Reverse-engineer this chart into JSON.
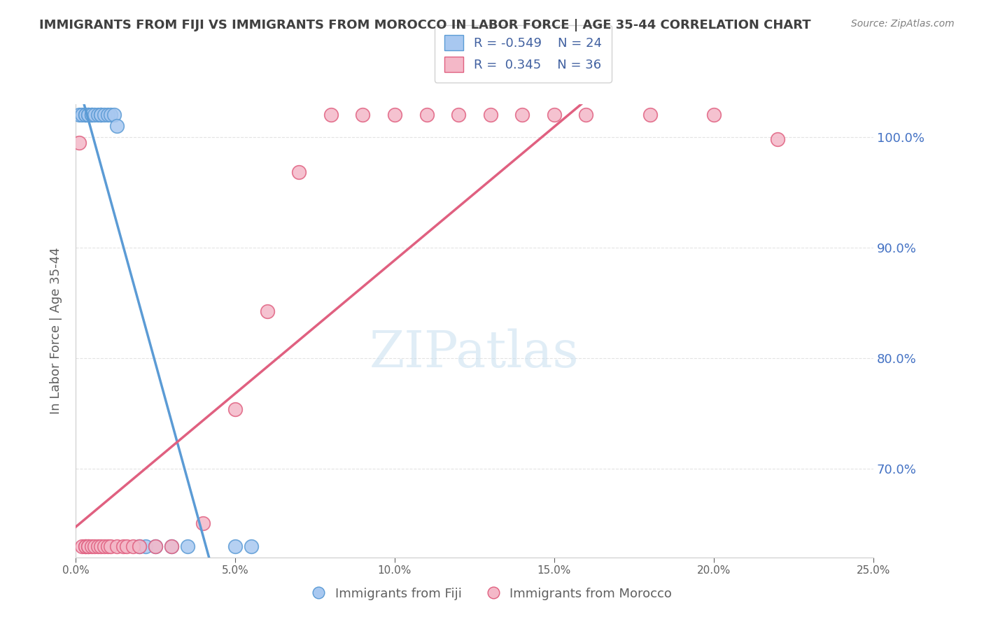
{
  "title": "IMMIGRANTS FROM FIJI VS IMMIGRANTS FROM MOROCCO IN LABOR FORCE | AGE 35-44 CORRELATION CHART",
  "source": "Source: ZipAtlas.com",
  "ylabel": "In Labor Force | Age 35-44",
  "xlim": [
    0.0,
    0.25
  ],
  "ylim": [
    0.62,
    1.03
  ],
  "xticks": [
    0.0,
    0.05,
    0.1,
    0.15,
    0.2,
    0.25
  ],
  "xticklabels": [
    "0.0%",
    "5.0%",
    "10.0%",
    "15.0%",
    "20.0%",
    "25.0%"
  ],
  "yticks": [
    0.7,
    0.8,
    0.9,
    1.0
  ],
  "yticklabels": [
    "70.0%",
    "80.0%",
    "90.0%",
    "100.0%"
  ],
  "fiji_color": "#a8c8f0",
  "fiji_edge": "#5b9bd5",
  "morocco_color": "#f4b8c8",
  "morocco_edge": "#e06080",
  "fiji_R": -0.549,
  "fiji_N": 24,
  "morocco_R": 0.345,
  "morocco_N": 36,
  "watermark": "ZIPatlas",
  "background_color": "#ffffff",
  "grid_color": "#dddddd",
  "title_color": "#404040",
  "right_tick_color": "#4472c4"
}
